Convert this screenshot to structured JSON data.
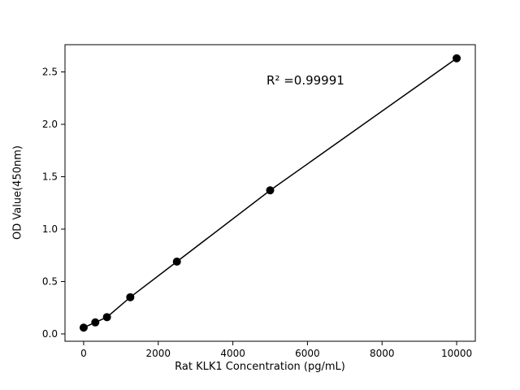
{
  "chart_data": {
    "type": "scatter",
    "x": [
      0,
      312.5,
      625,
      1250,
      2500,
      5000,
      10000
    ],
    "y": [
      0.06,
      0.11,
      0.16,
      0.35,
      0.69,
      1.37,
      2.63
    ],
    "title": "",
    "xlabel": "Rat KLK1 Concentration (pg/mL)",
    "ylabel": "OD Value(450nm)",
    "annotation": "R² =0.99991",
    "xticks": [
      0,
      2000,
      4000,
      6000,
      8000,
      10000
    ],
    "yticks": [
      0.0,
      0.5,
      1.0,
      1.5,
      2.0,
      2.5
    ],
    "xlim": [
      -500,
      10500
    ],
    "ylim": [
      -0.07,
      2.76
    ],
    "grid": false,
    "legend": "none",
    "line_color": "#000000",
    "marker_color": "#000000",
    "background": "#ffffff"
  }
}
